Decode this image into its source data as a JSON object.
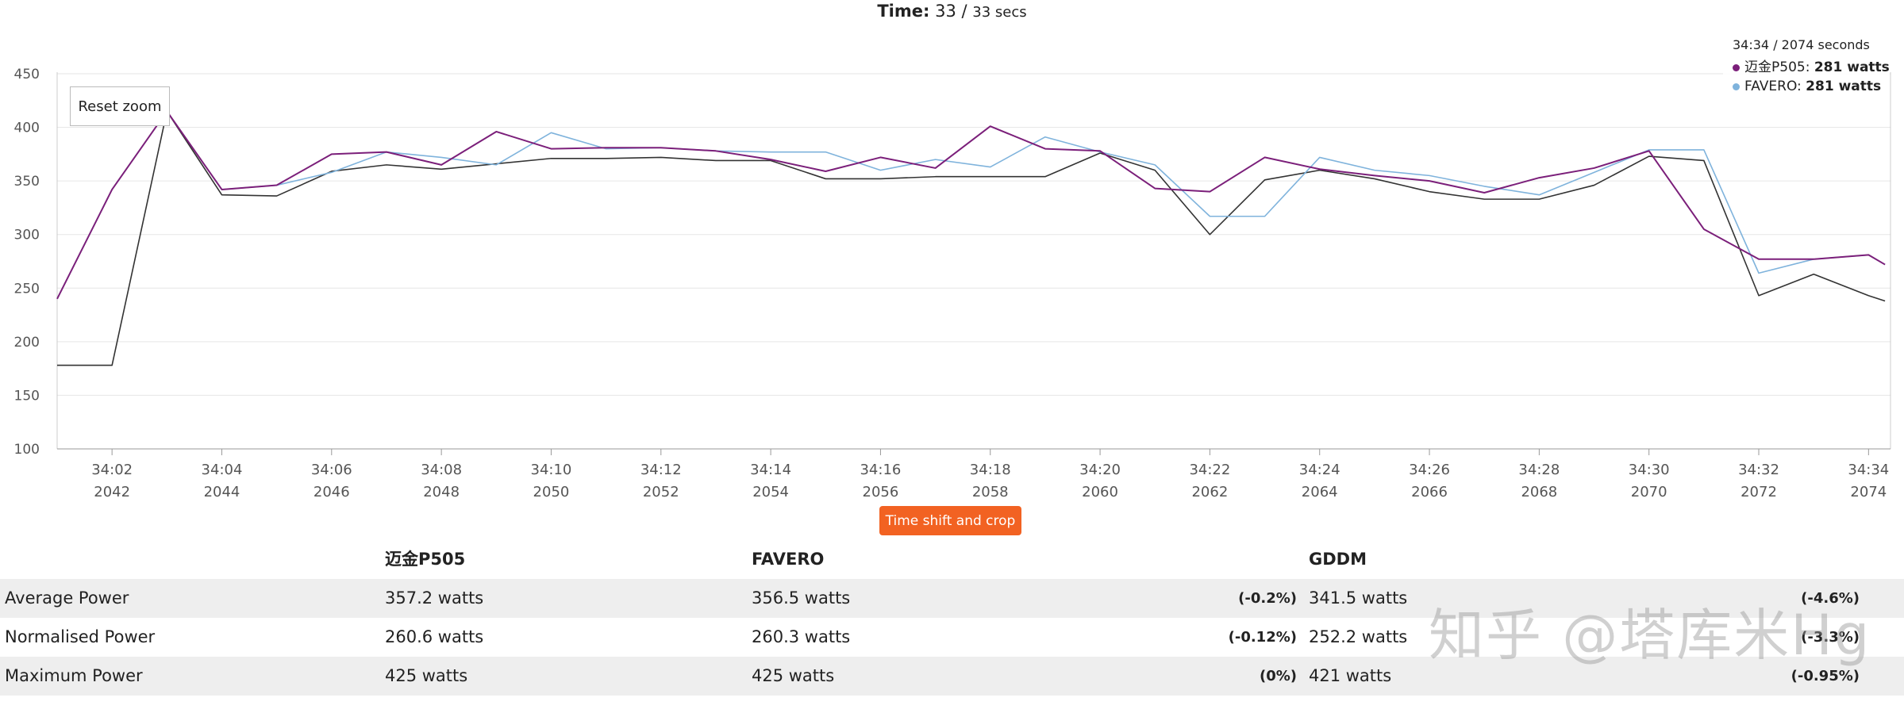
{
  "header": {
    "time_label": "Time:",
    "time_value": "33",
    "time_sep": "/",
    "time_total": "33 secs"
  },
  "reset_zoom_label": "Reset zoom",
  "tooltip": {
    "time": "34:34 / 2074 seconds",
    "rows": [
      {
        "name": "迈金P505",
        "value": "281 watts",
        "color": "#7b1f7a"
      },
      {
        "name": "FAVERO",
        "value": "281 watts",
        "color": "#7fb3dc"
      }
    ]
  },
  "crop_button_label": "Time shift and crop",
  "stats": {
    "columns": [
      "迈金P505",
      "FAVERO",
      "GDDM"
    ],
    "rows": [
      {
        "label": "Average Power",
        "p505": "357.2 watts",
        "favero": "356.5 watts",
        "favero_pct": "(-0.2%)",
        "gddm": "341.5 watts",
        "gddm_pct": "(-4.6%)"
      },
      {
        "label": "Normalised Power",
        "p505": "260.6 watts",
        "favero": "260.3 watts",
        "favero_pct": "(-0.12%)",
        "gddm": "252.2 watts",
        "gddm_pct": "(-3.3%)"
      },
      {
        "label": "Maximum Power",
        "p505": "425 watts",
        "favero": "425 watts",
        "favero_pct": "(0%)",
        "gddm": "421 watts",
        "gddm_pct": "(-0.95%)"
      }
    ]
  },
  "watermark": "知乎 @塔库米Hg",
  "chart_data": {
    "type": "line",
    "x": [
      2041,
      2042,
      2043,
      2044,
      2045,
      2046,
      2047,
      2048,
      2049,
      2050,
      2051,
      2052,
      2053,
      2054,
      2055,
      2056,
      2057,
      2058,
      2059,
      2060,
      2061,
      2062,
      2063,
      2064,
      2065,
      2066,
      2067,
      2068,
      2069,
      2070,
      2071,
      2072,
      2073,
      2074,
      2074.3
    ],
    "x_tick_values": [
      2042,
      2044,
      2046,
      2048,
      2050,
      2052,
      2054,
      2056,
      2058,
      2060,
      2062,
      2064,
      2066,
      2068,
      2070,
      2072,
      2074
    ],
    "x_tick_labels_time": [
      "34:02",
      "34:04",
      "34:06",
      "34:08",
      "34:10",
      "34:12",
      "34:14",
      "34:16",
      "34:18",
      "34:20",
      "34:22",
      "34:24",
      "34:26",
      "34:28",
      "34:30",
      "34:32",
      "34:34"
    ],
    "x_tick_labels_secs": [
      "2042",
      "2044",
      "2046",
      "2048",
      "2050",
      "2052",
      "2054",
      "2056",
      "2058",
      "2060",
      "2062",
      "2064",
      "2066",
      "2068",
      "2070",
      "2072",
      "2074"
    ],
    "xlim": [
      2041,
      2074.4
    ],
    "ylim": [
      100,
      450
    ],
    "y_ticks": [
      100,
      150,
      200,
      250,
      300,
      350,
      400,
      450
    ],
    "grid": true,
    "series": [
      {
        "name": "迈金P505",
        "color": "#7b1f7a",
        "values": [
          240,
          342,
          415,
          342,
          346,
          375,
          377,
          365,
          396,
          380,
          381,
          381,
          378,
          370,
          359,
          372,
          362,
          401,
          380,
          378,
          343,
          340,
          372,
          361,
          355,
          350,
          339,
          353,
          362,
          378,
          305,
          277,
          277,
          281,
          272
        ]
      },
      {
        "name": "FAVERO",
        "color": "#7fb3dc",
        "values": [
          240,
          342,
          415,
          342,
          346,
          358,
          377,
          372,
          365,
          395,
          380,
          381,
          378,
          377,
          377,
          360,
          370,
          363,
          391,
          377,
          365,
          317,
          317,
          372,
          360,
          355,
          345,
          337,
          358,
          379,
          379,
          264,
          277,
          281,
          272
        ]
      },
      {
        "name": "GDDM",
        "color": "#333333",
        "values": [
          178,
          178,
          415,
          337,
          336,
          359,
          365,
          361,
          366,
          371,
          371,
          372,
          369,
          369,
          352,
          352,
          354,
          354,
          354,
          376,
          360,
          300,
          351,
          360,
          352,
          340,
          333,
          333,
          346,
          373,
          369,
          243,
          263,
          243,
          238
        ]
      }
    ]
  }
}
